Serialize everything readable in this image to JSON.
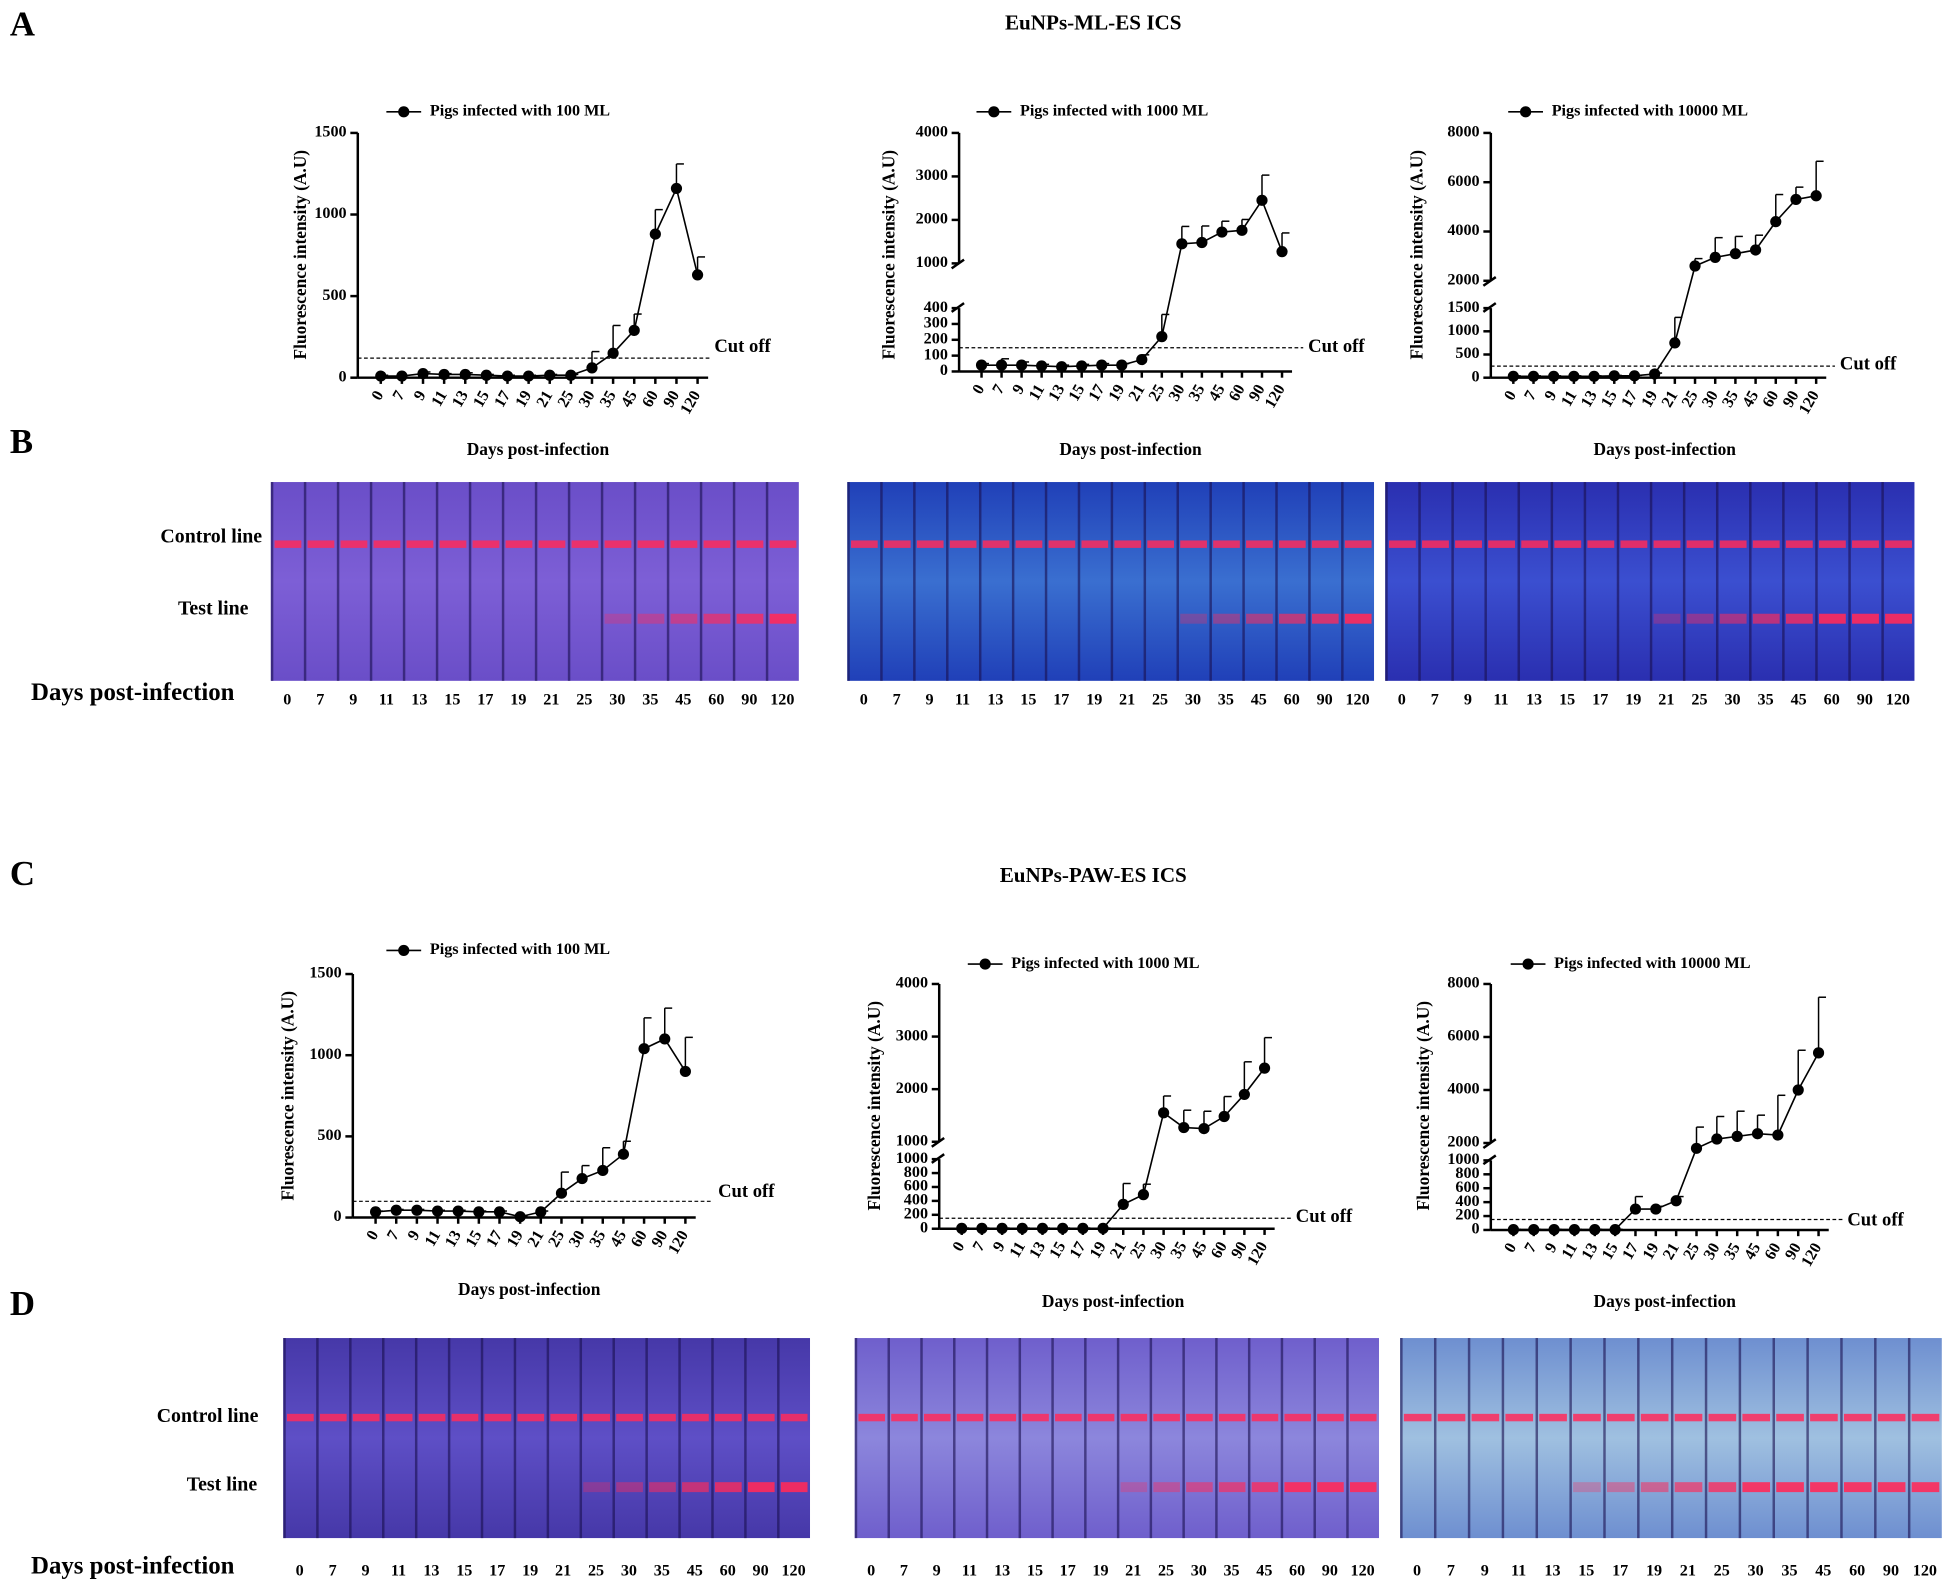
{
  "panels": [
    {
      "letter": "A",
      "title": "EuNPs-ML-ES ICS"
    },
    {
      "letter": "B",
      "control_label": "Control line",
      "test_label": "Test line",
      "days_label": "Days post-infection",
      "strips": [
        {
          "days": [
            "0",
            "7",
            "9",
            "11",
            "13",
            "15",
            "17",
            "19",
            "21",
            "25",
            "30",
            "35",
            "45",
            "60",
            "90",
            "120"
          ]
        },
        {
          "days": [
            "0",
            "7",
            "9",
            "11",
            "13",
            "15",
            "17",
            "19",
            "21",
            "25",
            "30",
            "35",
            "45",
            "60",
            "90",
            "120"
          ]
        },
        {
          "days": [
            "0",
            "7",
            "9",
            "11",
            "13",
            "15",
            "17",
            "19",
            "21",
            "25",
            "30",
            "35",
            "45",
            "60",
            "90",
            "120"
          ]
        }
      ]
    },
    {
      "letter": "C",
      "title": "EuNPs-PAW-ES ICS"
    },
    {
      "letter": "D",
      "control_label": "Control line",
      "test_label": "Test line",
      "days_label": "Days post-infection",
      "strips": [
        {
          "days": [
            "0",
            "7",
            "9",
            "11",
            "13",
            "15",
            "17",
            "19",
            "21",
            "25",
            "30",
            "35",
            "45",
            "60",
            "90",
            "120"
          ]
        },
        {
          "days": [
            "0",
            "7",
            "9",
            "11",
            "13",
            "15",
            "17",
            "19",
            "21",
            "25",
            "30",
            "35",
            "45",
            "60",
            "90",
            "120"
          ]
        },
        {
          "days": [
            "0",
            "7",
            "9",
            "11",
            "13",
            "15",
            "17",
            "19",
            "21",
            "25",
            "30",
            "35",
            "45",
            "60",
            "90",
            "120"
          ]
        }
      ]
    }
  ],
  "chart_data": [
    {
      "type": "line",
      "ylabel": "Fluorescence intensity (A.U)",
      "xlabel": "Days post-infection",
      "categories": [
        "0",
        "7",
        "9",
        "11",
        "13",
        "15",
        "17",
        "19",
        "21",
        "25",
        "30",
        "35",
        "45",
        "60",
        "90",
        "120"
      ],
      "series": [
        {
          "name": "Pigs infected with 100 ML",
          "color": "#000000",
          "values": [
            10,
            10,
            25,
            20,
            20,
            15,
            10,
            10,
            15,
            15,
            60,
            150,
            290,
            880,
            1160,
            630
          ],
          "errors": [
            5,
            5,
            10,
            5,
            10,
            5,
            5,
            5,
            5,
            5,
            100,
            170,
            100,
            150,
            150,
            110
          ]
        }
      ],
      "ylim": [
        0,
        1500
      ],
      "yticks": [
        0,
        500,
        1000,
        1500
      ],
      "cutoff": {
        "value": 120,
        "label": "Cut off"
      }
    },
    {
      "type": "line",
      "ylabel": "Fluorescence intensity (A.U)",
      "xlabel": "Days post-infection",
      "categories": [
        "0",
        "7",
        "9",
        "11",
        "13",
        "15",
        "17",
        "19",
        "21",
        "25",
        "30",
        "35",
        "45",
        "60",
        "90",
        "120"
      ],
      "series": [
        {
          "name": "Pigs infected with 1000 ML",
          "color": "#000000",
          "values": [
            40,
            40,
            40,
            35,
            30,
            35,
            40,
            40,
            75,
            220,
            1450,
            1480,
            1720,
            1760,
            2450,
            1270
          ],
          "errors": [
            10,
            40,
            20,
            10,
            10,
            10,
            10,
            10,
            30,
            140,
            400,
            380,
            250,
            250,
            580,
            430
          ]
        }
      ],
      "y_segments": [
        {
          "ylim": [
            0,
            400
          ],
          "yticks": [
            0,
            100,
            200,
            300,
            400
          ]
        },
        {
          "ylim": [
            1000,
            4000
          ],
          "yticks": [
            1000,
            2000,
            3000,
            4000
          ]
        }
      ],
      "cutoff": {
        "value": 150,
        "label": "Cut off"
      }
    },
    {
      "type": "line",
      "ylabel": "Fluorescence intensity (A.U)",
      "xlabel": "Days post-infection",
      "categories": [
        "0",
        "7",
        "9",
        "11",
        "13",
        "15",
        "17",
        "19",
        "21",
        "25",
        "30",
        "35",
        "45",
        "60",
        "90",
        "120"
      ],
      "series": [
        {
          "name": "Pigs infected with 10000 ML",
          "color": "#000000",
          "values": [
            30,
            30,
            30,
            30,
            30,
            40,
            40,
            80,
            750,
            2600,
            2950,
            3100,
            3250,
            4400,
            5300,
            5450
          ],
          "errors": [
            10,
            10,
            10,
            10,
            10,
            10,
            10,
            20,
            550,
            300,
            800,
            700,
            600,
            1100,
            500,
            1400
          ]
        }
      ],
      "y_segments": [
        {
          "ylim": [
            0,
            1500
          ],
          "yticks": [
            0,
            500,
            1000,
            1500
          ]
        },
        {
          "ylim": [
            2000,
            8000
          ],
          "yticks": [
            2000,
            4000,
            6000,
            8000
          ]
        }
      ],
      "cutoff": {
        "value": 250,
        "label": "Cut off"
      }
    },
    {
      "type": "line",
      "ylabel": "Fluorescence intensity (A.U)",
      "xlabel": "Days post-infection",
      "categories": [
        "0",
        "7",
        "9",
        "11",
        "13",
        "15",
        "17",
        "19",
        "21",
        "25",
        "30",
        "35",
        "45",
        "60",
        "90",
        "120"
      ],
      "series": [
        {
          "name": "Pigs infected with 100 ML",
          "color": "#000000",
          "values": [
            35,
            45,
            45,
            40,
            40,
            35,
            35,
            5,
            35,
            150,
            240,
            290,
            390,
            1040,
            1100,
            900
          ],
          "errors": [
            5,
            5,
            5,
            5,
            5,
            5,
            5,
            5,
            5,
            130,
            80,
            140,
            80,
            190,
            190,
            210
          ]
        }
      ],
      "ylim": [
        0,
        1500
      ],
      "yticks": [
        0,
        500,
        1000,
        1500
      ],
      "cutoff": {
        "value": 100,
        "label": "Cut off"
      }
    },
    {
      "type": "line",
      "ylabel": "Fluorescence intensity (A.U)",
      "xlabel": "Days post-infection",
      "categories": [
        "0",
        "7",
        "9",
        "11",
        "13",
        "15",
        "17",
        "19",
        "21",
        "25",
        "30",
        "35",
        "45",
        "60",
        "90",
        "120"
      ],
      "series": [
        {
          "name": "Pigs infected with 1000 ML",
          "color": "#000000",
          "values": [
            5,
            5,
            5,
            5,
            5,
            5,
            5,
            5,
            350,
            490,
            1550,
            1270,
            1250,
            1480,
            1900,
            2400
          ],
          "errors": [
            5,
            5,
            5,
            5,
            5,
            5,
            5,
            5,
            300,
            150,
            320,
            330,
            330,
            380,
            620,
            580
          ]
        }
      ],
      "y_segments": [
        {
          "ylim": [
            0,
            1000
          ],
          "yticks": [
            0,
            200,
            400,
            600,
            800,
            1000
          ]
        },
        {
          "ylim": [
            1000,
            4000
          ],
          "yticks": [
            1000,
            2000,
            3000,
            4000
          ]
        }
      ],
      "cutoff": {
        "value": 150,
        "label": "Cut off"
      }
    },
    {
      "type": "line",
      "ylabel": "Fluorescence intensity (A.U)",
      "xlabel": "Days post-infection",
      "categories": [
        "0",
        "7",
        "9",
        "11",
        "13",
        "15",
        "17",
        "19",
        "21",
        "25",
        "30",
        "35",
        "45",
        "60",
        "90",
        "120"
      ],
      "series": [
        {
          "name": "Pigs infected with 10000 ML",
          "color": "#000000",
          "values": [
            5,
            5,
            5,
            5,
            5,
            5,
            300,
            300,
            420,
            1800,
            2150,
            2250,
            2350,
            2300,
            4000,
            5400
          ],
          "errors": [
            5,
            5,
            5,
            5,
            5,
            5,
            180,
            40,
            60,
            800,
            850,
            950,
            700,
            1500,
            1500,
            2100
          ]
        }
      ],
      "y_segments": [
        {
          "ylim": [
            0,
            1000
          ],
          "yticks": [
            0,
            200,
            400,
            600,
            800,
            1000
          ]
        },
        {
          "ylim": [
            2000,
            8000
          ],
          "yticks": [
            2000,
            4000,
            6000,
            8000
          ]
        }
      ],
      "cutoff": {
        "value": 150,
        "label": "Cut off"
      }
    }
  ]
}
